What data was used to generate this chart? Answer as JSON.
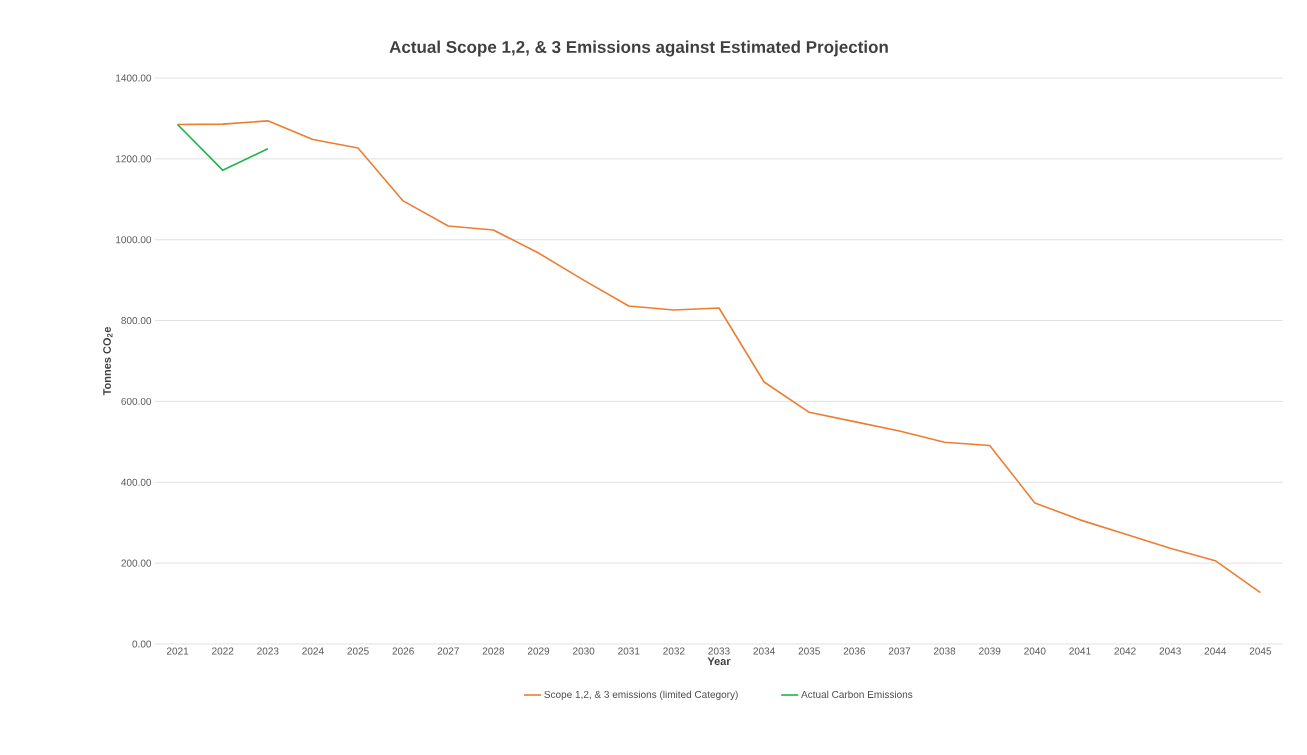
{
  "chart_data": {
    "type": "line",
    "title": "Actual Scope 1,2, & 3 Emissions against Estimated Projection",
    "xlabel": "Year",
    "ylabel": "Tonnes CO$_{2}$e",
    "categories": [
      "2021",
      "2022",
      "2023",
      "2024",
      "2025",
      "2026",
      "2027",
      "2028",
      "2029",
      "2030",
      "2031",
      "2032",
      "2033",
      "2034",
      "2035",
      "2036",
      "2037",
      "2038",
      "2039",
      "2040",
      "2041",
      "2042",
      "2043",
      "2044",
      "2045"
    ],
    "series": [
      {
        "name": "Scope 1,2, & 3 emissions (limited Category)",
        "color": "#ed7d31",
        "values": [
          1285,
          1286,
          1294,
          1248,
          1227,
          1096,
          1034,
          1024,
          967,
          900,
          836,
          826,
          831,
          648,
          573,
          550,
          527,
          499,
          491,
          349,
          307,
          272,
          237,
          206,
          127
        ]
      },
      {
        "name": "Actual Carbon Emissions",
        "color": "#22b14c",
        "values": [
          1285,
          1172,
          1225,
          null,
          null,
          null,
          null,
          null,
          null,
          null,
          null,
          null,
          null,
          null,
          null,
          null,
          null,
          null,
          null,
          null,
          null,
          null,
          null,
          null,
          null
        ]
      }
    ],
    "ylim": [
      0,
      1400
    ],
    "yticks": [
      {
        "value": 0,
        "label": "0.00"
      },
      {
        "value": 200,
        "label": "200.00"
      },
      {
        "value": 400,
        "label": "400.00"
      },
      {
        "value": 600,
        "label": "600.00"
      },
      {
        "value": 800,
        "label": "800.00"
      },
      {
        "value": 1000,
        "label": "1000.00"
      },
      {
        "value": 1200,
        "label": "1200.00"
      },
      {
        "value": 1400,
        "label": "1400.00"
      }
    ],
    "grid": "y",
    "legend": "bottom",
    "marker": "none",
    "line_style": "solid"
  }
}
